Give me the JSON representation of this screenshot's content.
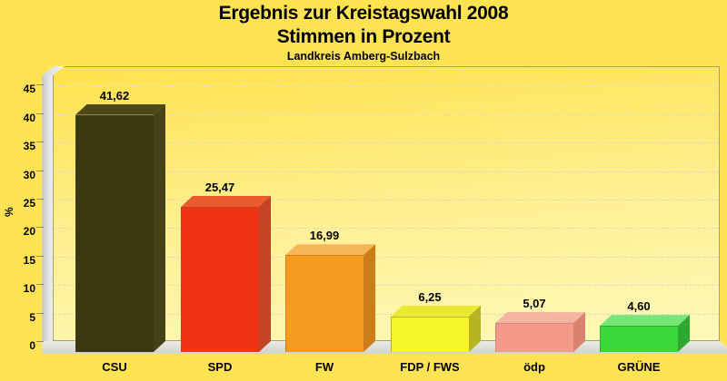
{
  "header": {
    "title_line1": "Ergebnis zur Kreistagswahl 2008",
    "title_line2": "Stimmen in Prozent",
    "subtitle": "Landkreis Amberg-Sulzbach"
  },
  "chart_data": {
    "type": "bar",
    "style": "3d-bars",
    "title": "Ergebnis zur Kreistagswahl 2008 — Stimmen in Prozent",
    "subtitle": "Landkreis Amberg-Sulzbach",
    "xlabel": "",
    "ylabel": "%",
    "ylim": [
      0,
      45
    ],
    "yticks": [
      0,
      5,
      10,
      15,
      20,
      25,
      30,
      35,
      40,
      45
    ],
    "grid": "dashed-horizontal",
    "legend": "none",
    "categories": [
      "CSU",
      "SPD",
      "FW",
      "FDP / FWS",
      "ödp",
      "GRÜNE"
    ],
    "values": [
      41.62,
      25.47,
      16.99,
      6.25,
      5.07,
      4.6
    ],
    "value_labels": [
      "41,62",
      "25,47",
      "16,99",
      "6,25",
      "5,07",
      "4,60"
    ],
    "bar_colors": [
      {
        "front": "#3A3711",
        "top": "#4C4818",
        "side": "#45421A"
      },
      {
        "front": "#EE3317",
        "top": "#EC5B2E",
        "side": "#C14427"
      },
      {
        "front": "#F59C20",
        "top": "#F6B557",
        "side": "#CC7D18"
      },
      {
        "front": "#F6F62B",
        "top": "#E9E930",
        "side": "#B5B522"
      },
      {
        "front": "#F49A8A",
        "top": "#F5B3A2",
        "side": "#D8826F"
      },
      {
        "front": "#3BD83B",
        "top": "#78E578",
        "side": "#2FA82F"
      }
    ]
  },
  "colors": {
    "background": "#FFE352",
    "plot_gradient_top": "#FFE24C",
    "plot_gradient_bottom": "#FFF9B8",
    "frame_border": "#A6A06A",
    "gridline": "#D9D9C9",
    "wall_gray": "#DEDEDE",
    "floor_gray": "#D2D2CC",
    "text": "#000000"
  }
}
